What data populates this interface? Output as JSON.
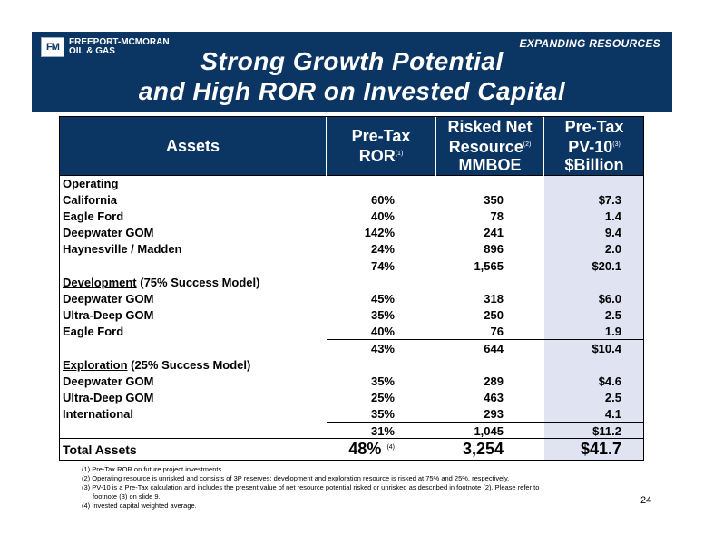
{
  "banner": {
    "logo_mark": "FM",
    "logo_line1": "FREEPORT-MCMORAN",
    "logo_line2": "OIL & GAS",
    "tag": "EXPANDING RESOURCES",
    "title_line1": "Strong Growth Potential",
    "title_line2": "and High ROR on Invested Capital"
  },
  "table": {
    "headers": {
      "assets": "Assets",
      "ror_line1": "Pre-Tax",
      "ror_line2": "ROR",
      "ror_note": "(1)",
      "res_line1": "Risked Net",
      "res_line2": "Resource",
      "res_note": "(2)",
      "res_line3": "MMBOE",
      "pv_line1": "Pre-Tax",
      "pv_line2": "PV-10",
      "pv_note": "(3)",
      "pv_line3": "$Billion"
    },
    "operating": {
      "heading": "Operating",
      "rows": [
        {
          "name": "California",
          "ror": "60%",
          "res": "350",
          "pv": "$7.3"
        },
        {
          "name": "Eagle Ford",
          "ror": "40%",
          "res": "78",
          "pv": "1.4"
        },
        {
          "name": "Deepwater GOM",
          "ror": "142%",
          "res": "241",
          "pv": "9.4"
        },
        {
          "name": "Haynesville / Madden",
          "ror": "24%",
          "res": "896",
          "pv": "2.0"
        }
      ],
      "subtotal": {
        "ror": "74%",
        "res": "1,565",
        "pv": "$20.1"
      }
    },
    "development": {
      "heading": "Development",
      "heading_suffix": " (75% Success Model)",
      "rows": [
        {
          "name": "Deepwater GOM",
          "ror": "45%",
          "res": "318",
          "pv": "$6.0"
        },
        {
          "name": "Ultra-Deep GOM",
          "ror": "35%",
          "res": "250",
          "pv": "2.5"
        },
        {
          "name": "Eagle Ford",
          "ror": "40%",
          "res": "76",
          "pv": "1.9"
        }
      ],
      "subtotal": {
        "ror": "43%",
        "res": "644",
        "pv": "$10.4"
      }
    },
    "exploration": {
      "heading": "Exploration",
      "heading_suffix": " (25% Success Model)",
      "rows": [
        {
          "name": "Deepwater GOM",
          "ror": "35%",
          "res": "289",
          "pv": "$4.6"
        },
        {
          "name": "Ultra-Deep GOM",
          "ror": "25%",
          "res": "463",
          "pv": "2.5"
        },
        {
          "name": "International",
          "ror": "35%",
          "res": "293",
          "pv": "4.1"
        }
      ],
      "subtotal": {
        "ror": "31%",
        "res": "1,045",
        "pv": "$11.2"
      }
    },
    "total": {
      "name": "Total Assets",
      "ror": "48%",
      "ror_note": "(4)",
      "res": "3,254",
      "pv": "$41.7"
    }
  },
  "footnotes": {
    "n1": "(1) Pre-Tax ROR on future project investments.",
    "n2": "(2) Operating resource is unrisked and consists of 3P reserves; development and exploration resource is risked at 75% and 25%, respectively.",
    "n3a": "(3) PV-10 is a Pre-Tax calculation and includes the present value of net resource potential risked or unrisked as described in footnote (2). Please refer to",
    "n3b": "footnote (3) on slide 9.",
    "n4": "(4) Invested capital weighted average."
  },
  "page_number": "24"
}
